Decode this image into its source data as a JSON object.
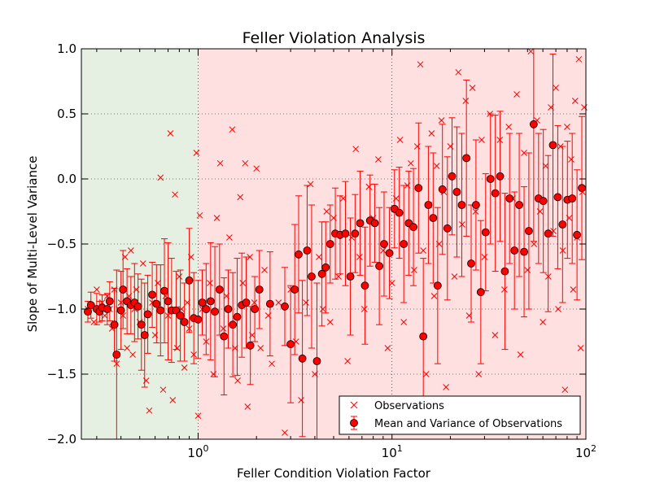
{
  "chart_data": {
    "type": "scatter",
    "title": "Feller Violation Analysis",
    "xlabel": "Feller Condition Violation Factor",
    "ylabel": "Slope of Multi-Level Variance",
    "xscale": "log",
    "xlim": [
      0.25,
      100
    ],
    "ylim": [
      -2.0,
      1.0
    ],
    "grid": true,
    "legend_position": "lower-right",
    "x_ticks": [
      {
        "value": 1,
        "base": "10",
        "exp": "0"
      },
      {
        "value": 10,
        "base": "10",
        "exp": "1"
      },
      {
        "value": 100,
        "base": "10",
        "exp": "2"
      }
    ],
    "y_ticks": [
      {
        "value": 1.0,
        "label": "1.0"
      },
      {
        "value": 0.5,
        "label": "0.5"
      },
      {
        "value": 0.0,
        "label": "0.0"
      },
      {
        "value": -0.5,
        "label": "−0.5"
      },
      {
        "value": -1.0,
        "label": "−1.0"
      },
      {
        "value": -1.5,
        "label": "−1.5"
      },
      {
        "value": -2.0,
        "label": "−2.0"
      }
    ],
    "regions": [
      {
        "x_from": 0.25,
        "x_to": 1.0,
        "color": "#e5f0e2"
      },
      {
        "x_from": 1.0,
        "x_to": 100,
        "color": "#ffe0e0"
      }
    ],
    "series": [
      {
        "name": "Observations",
        "marker": "x",
        "color": "#ff0000",
        "points": [
          [
            0.27,
            -1.0
          ],
          [
            0.28,
            -0.98
          ],
          [
            0.29,
            -1.1
          ],
          [
            0.3,
            -0.85
          ],
          [
            0.31,
            -1.0
          ],
          [
            0.32,
            -0.95
          ],
          [
            0.33,
            -1.05
          ],
          [
            0.34,
            -0.9
          ],
          [
            0.35,
            -1.0
          ],
          [
            0.36,
            -1.15
          ],
          [
            0.37,
            -0.85
          ],
          [
            0.38,
            -1.42
          ],
          [
            0.39,
            -1.0
          ],
          [
            0.4,
            -0.95
          ],
          [
            0.41,
            -1.05
          ],
          [
            0.42,
            -0.6
          ],
          [
            0.43,
            -1.3
          ],
          [
            0.44,
            -0.9
          ],
          [
            0.45,
            -0.55
          ],
          [
            0.46,
            -1.35
          ],
          [
            0.47,
            -1.0
          ],
          [
            0.48,
            -0.85
          ],
          [
            0.5,
            -1.1
          ],
          [
            0.52,
            -0.65
          ],
          [
            0.54,
            -1.55
          ],
          [
            0.56,
            -1.78
          ],
          [
            0.58,
            -0.95
          ],
          [
            0.6,
            -1.2
          ],
          [
            0.62,
            -0.8
          ],
          [
            0.64,
            0.01
          ],
          [
            0.66,
            -1.62
          ],
          [
            0.68,
            -0.9
          ],
          [
            0.7,
            -1.05
          ],
          [
            0.72,
            0.35
          ],
          [
            0.74,
            -1.7
          ],
          [
            0.76,
            -0.12
          ],
          [
            0.78,
            -1.3
          ],
          [
            0.8,
            -0.75
          ],
          [
            0.82,
            -1.0
          ],
          [
            0.85,
            -1.45
          ],
          [
            0.88,
            -0.95
          ],
          [
            0.9,
            -1.15
          ],
          [
            0.92,
            -0.6
          ],
          [
            0.95,
            -1.35
          ],
          [
            0.98,
            0.2
          ],
          [
            1.0,
            -1.82
          ],
          [
            1.02,
            -0.28
          ],
          [
            1.05,
            -1.0
          ],
          [
            1.1,
            -1.25
          ],
          [
            1.15,
            -0.8
          ],
          [
            1.2,
            -1.5
          ],
          [
            1.25,
            -0.3
          ],
          [
            1.3,
            0.12
          ],
          [
            1.35,
            -1.15
          ],
          [
            1.4,
            -0.9
          ],
          [
            1.45,
            -0.45
          ],
          [
            1.5,
            0.38
          ],
          [
            1.55,
            -1.3
          ],
          [
            1.6,
            -1.55
          ],
          [
            1.65,
            -0.14
          ],
          [
            1.7,
            -0.8
          ],
          [
            1.75,
            0.12
          ],
          [
            1.8,
            -1.75
          ],
          [
            1.85,
            -0.6
          ],
          [
            1.9,
            -1.2
          ],
          [
            1.95,
            -0.95
          ],
          [
            2.0,
            0.08
          ],
          [
            2.1,
            -1.3
          ],
          [
            2.2,
            -0.7
          ],
          [
            2.3,
            -1.05
          ],
          [
            2.4,
            -1.42
          ],
          [
            2.6,
            -0.95
          ],
          [
            2.8,
            -1.95
          ],
          [
            3.0,
            -0.85
          ],
          [
            3.2,
            -1.25
          ],
          [
            3.4,
            -1.7
          ],
          [
            3.6,
            -0.95
          ],
          [
            3.8,
            -0.04
          ],
          [
            4.0,
            -1.5
          ],
          [
            4.2,
            -0.6
          ],
          [
            4.4,
            -1.0
          ],
          [
            4.6,
            -0.25
          ],
          [
            4.8,
            -1.1
          ],
          [
            5.0,
            -0.3
          ],
          [
            5.3,
            -0.75
          ],
          [
            5.6,
            -0.15
          ],
          [
            5.9,
            -1.4
          ],
          [
            6.2,
            -0.45
          ],
          [
            6.5,
            0.23
          ],
          [
            6.8,
            -0.6
          ],
          [
            7.2,
            -1.0
          ],
          [
            7.6,
            -0.06
          ],
          [
            8.0,
            -0.3
          ],
          [
            8.5,
            0.15
          ],
          [
            9.0,
            -0.55
          ],
          [
            9.5,
            -1.3
          ],
          [
            10.0,
            -0.8
          ],
          [
            10.5,
            -0.15
          ],
          [
            11.0,
            0.3
          ],
          [
            11.5,
            -1.1
          ],
          [
            12.0,
            -0.05
          ],
          [
            12.5,
            0.12
          ],
          [
            13.0,
            -0.7
          ],
          [
            13.5,
            0.25
          ],
          [
            14.0,
            0.88
          ],
          [
            14.5,
            -0.55
          ],
          [
            15.0,
            -1.5
          ],
          [
            15.5,
            -0.2
          ],
          [
            16.0,
            0.35
          ],
          [
            16.5,
            -0.9
          ],
          [
            17.0,
            0.1
          ],
          [
            17.5,
            -0.5
          ],
          [
            18.0,
            0.45
          ],
          [
            18.5,
            -0.1
          ],
          [
            19.0,
            -1.6
          ],
          [
            20.0,
            0.25
          ],
          [
            21.0,
            -0.75
          ],
          [
            22.0,
            0.82
          ],
          [
            23.0,
            -0.35
          ],
          [
            24.0,
            0.6
          ],
          [
            25.0,
            -1.05
          ],
          [
            26.0,
            0.7
          ],
          [
            27.0,
            -0.25
          ],
          [
            28.0,
            -1.5
          ],
          [
            29.0,
            0.3
          ],
          [
            30.0,
            -0.6
          ],
          [
            32.0,
            0.5
          ],
          [
            34.0,
            -1.2
          ],
          [
            36.0,
            0.3
          ],
          [
            38.0,
            -0.85
          ],
          [
            40.0,
            0.4
          ],
          [
            42.0,
            -0.15
          ],
          [
            44.0,
            0.65
          ],
          [
            46.0,
            -1.35
          ],
          [
            48.0,
            0.2
          ],
          [
            50.0,
            -0.7
          ],
          [
            52.0,
            0.98
          ],
          [
            54.0,
            -0.5
          ],
          [
            56.0,
            0.45
          ],
          [
            58.0,
            -0.25
          ],
          [
            60.0,
            -1.1
          ],
          [
            62.0,
            0.1
          ],
          [
            64.0,
            -0.75
          ],
          [
            66.0,
            0.55
          ],
          [
            68.0,
            -0.4
          ],
          [
            70.0,
            0.7
          ],
          [
            72.0,
            -1.0
          ],
          [
            74.0,
            0.25
          ],
          [
            76.0,
            -0.55
          ],
          [
            78.0,
            -1.62
          ],
          [
            80.0,
            0.4
          ],
          [
            82.0,
            -0.3
          ],
          [
            84.0,
            0.15
          ],
          [
            86.0,
            -0.85
          ],
          [
            88.0,
            0.6
          ],
          [
            90.0,
            -0.45
          ],
          [
            92.0,
            0.92
          ],
          [
            94.0,
            -1.3
          ],
          [
            96.0,
            -0.1
          ],
          [
            98.0,
            0.55
          ]
        ]
      },
      {
        "name": "Mean and Variance of Observations",
        "marker": "circle-with-errorbar",
        "color": "#ff0000",
        "edge_color": "#000000",
        "points": [
          [
            0.27,
            -1.02,
            0.08
          ],
          [
            0.28,
            -0.97,
            0.1
          ],
          [
            0.3,
            -1.0,
            0.12
          ],
          [
            0.31,
            -1.02,
            0.08
          ],
          [
            0.32,
            -0.99,
            0.1
          ],
          [
            0.34,
            -1.0,
            0.12
          ],
          [
            0.35,
            -0.94,
            0.15
          ],
          [
            0.37,
            -1.12,
            0.28
          ],
          [
            0.38,
            -1.35,
            0.65
          ],
          [
            0.4,
            -1.01,
            0.3
          ],
          [
            0.41,
            -0.85,
            0.3
          ],
          [
            0.43,
            -0.94,
            0.25
          ],
          [
            0.45,
            -0.97,
            0.22
          ],
          [
            0.47,
            -0.95,
            0.3
          ],
          [
            0.49,
            -0.98,
            0.25
          ],
          [
            0.51,
            -1.12,
            0.35
          ],
          [
            0.53,
            -1.2,
            0.4
          ],
          [
            0.55,
            -1.04,
            0.3
          ],
          [
            0.58,
            -0.89,
            0.25
          ],
          [
            0.61,
            -0.96,
            0.3
          ],
          [
            0.64,
            -1.01,
            0.35
          ],
          [
            0.67,
            -0.86,
            0.4
          ],
          [
            0.7,
            -0.94,
            0.45
          ],
          [
            0.73,
            -1.01,
            0.4
          ],
          [
            0.77,
            -1.01,
            0.3
          ],
          [
            0.81,
            -1.05,
            0.35
          ],
          [
            0.85,
            -1.1,
            0.3
          ],
          [
            0.9,
            -0.78,
            0.4
          ],
          [
            0.95,
            -1.07,
            0.35
          ],
          [
            1.0,
            -1.08,
            0.3
          ],
          [
            1.05,
            -0.95,
            0.25
          ],
          [
            1.1,
            -1.0,
            0.35
          ],
          [
            1.16,
            -0.94,
            0.45
          ],
          [
            1.22,
            -1.02,
            0.5
          ],
          [
            1.29,
            -0.85,
            0.35
          ],
          [
            1.36,
            -1.21,
            0.45
          ],
          [
            1.43,
            -1.0,
            0.3
          ],
          [
            1.51,
            -1.12,
            0.4
          ],
          [
            1.59,
            -1.06,
            0.45
          ],
          [
            1.68,
            -0.97,
            0.4
          ],
          [
            1.77,
            -0.95,
            0.35
          ],
          [
            1.86,
            -1.28,
            0.3
          ],
          [
            1.96,
            -1.0,
            0.25
          ],
          [
            2.07,
            -0.85,
            0.3
          ],
          [
            2.35,
            -0.96,
            0.4
          ],
          [
            2.8,
            -0.98,
            0.3
          ],
          [
            3.0,
            -1.27,
            0.45
          ],
          [
            3.15,
            -0.85,
            0.5
          ],
          [
            3.3,
            -0.58,
            0.45
          ],
          [
            3.45,
            -1.38,
            0.6
          ],
          [
            3.65,
            -0.55,
            0.5
          ],
          [
            3.85,
            -0.75,
            0.55
          ],
          [
            4.1,
            -1.4,
            0.6
          ],
          [
            4.35,
            -0.73,
            0.4
          ],
          [
            4.55,
            -0.68,
            0.35
          ],
          [
            4.8,
            -0.5,
            0.3
          ],
          [
            5.1,
            -0.42,
            0.35
          ],
          [
            5.4,
            -0.43,
            0.3
          ],
          [
            5.75,
            -0.42,
            0.4
          ],
          [
            6.1,
            -0.75,
            0.45
          ],
          [
            6.45,
            -0.42,
            0.3
          ],
          [
            6.85,
            -0.34,
            0.4
          ],
          [
            7.25,
            -0.82,
            0.45
          ],
          [
            7.7,
            -0.32,
            0.35
          ],
          [
            8.15,
            -0.34,
            0.3
          ],
          [
            8.6,
            -0.67,
            0.45
          ],
          [
            9.1,
            -0.5,
            0.4
          ],
          [
            9.7,
            -0.57,
            0.35
          ],
          [
            10.3,
            -0.23,
            0.3
          ],
          [
            10.9,
            -0.26,
            0.35
          ],
          [
            11.5,
            -0.5,
            0.45
          ],
          [
            12.2,
            -0.34,
            0.4
          ],
          [
            12.9,
            -0.37,
            0.45
          ],
          [
            13.7,
            -0.07,
            0.5
          ],
          [
            14.5,
            -1.21,
            0.6
          ],
          [
            15.4,
            -0.2,
            0.45
          ],
          [
            16.3,
            -0.3,
            0.5
          ],
          [
            17.2,
            -0.82,
            0.6
          ],
          [
            18.2,
            -0.08,
            0.5
          ],
          [
            19.3,
            -0.38,
            0.55
          ],
          [
            20.4,
            0.02,
            0.45
          ],
          [
            21.6,
            -0.1,
            0.5
          ],
          [
            22.9,
            -0.2,
            0.55
          ],
          [
            24.2,
            0.16,
            0.6
          ],
          [
            25.6,
            -0.65,
            0.45
          ],
          [
            27.1,
            -0.2,
            0.5
          ],
          [
            28.7,
            -0.87,
            0.55
          ],
          [
            30.4,
            -0.41,
            0.45
          ],
          [
            32.2,
            0.0,
            0.5
          ],
          [
            34.1,
            -0.11,
            0.6
          ],
          [
            36.1,
            0.02,
            0.5
          ],
          [
            38.2,
            -0.71,
            0.6
          ],
          [
            40.4,
            -0.15,
            0.5
          ],
          [
            42.8,
            -0.55,
            0.45
          ],
          [
            45.3,
            -0.2,
            0.55
          ],
          [
            48.0,
            -0.56,
            0.5
          ],
          [
            50.8,
            -0.4,
            0.6
          ],
          [
            53.8,
            0.42,
            0.9
          ],
          [
            57.0,
            -0.15,
            0.5
          ],
          [
            60.3,
            -0.17,
            0.55
          ],
          [
            63.9,
            -0.42,
            0.6
          ],
          [
            67.6,
            0.26,
            0.7
          ],
          [
            71.6,
            -0.14,
            0.55
          ],
          [
            75.8,
            -0.35,
            0.6
          ],
          [
            80.3,
            -0.16,
            0.45
          ],
          [
            85.0,
            -0.15,
            0.5
          ],
          [
            90.0,
            -0.43,
            0.5
          ],
          [
            95.3,
            -0.07,
            0.55
          ]
        ]
      }
    ]
  }
}
